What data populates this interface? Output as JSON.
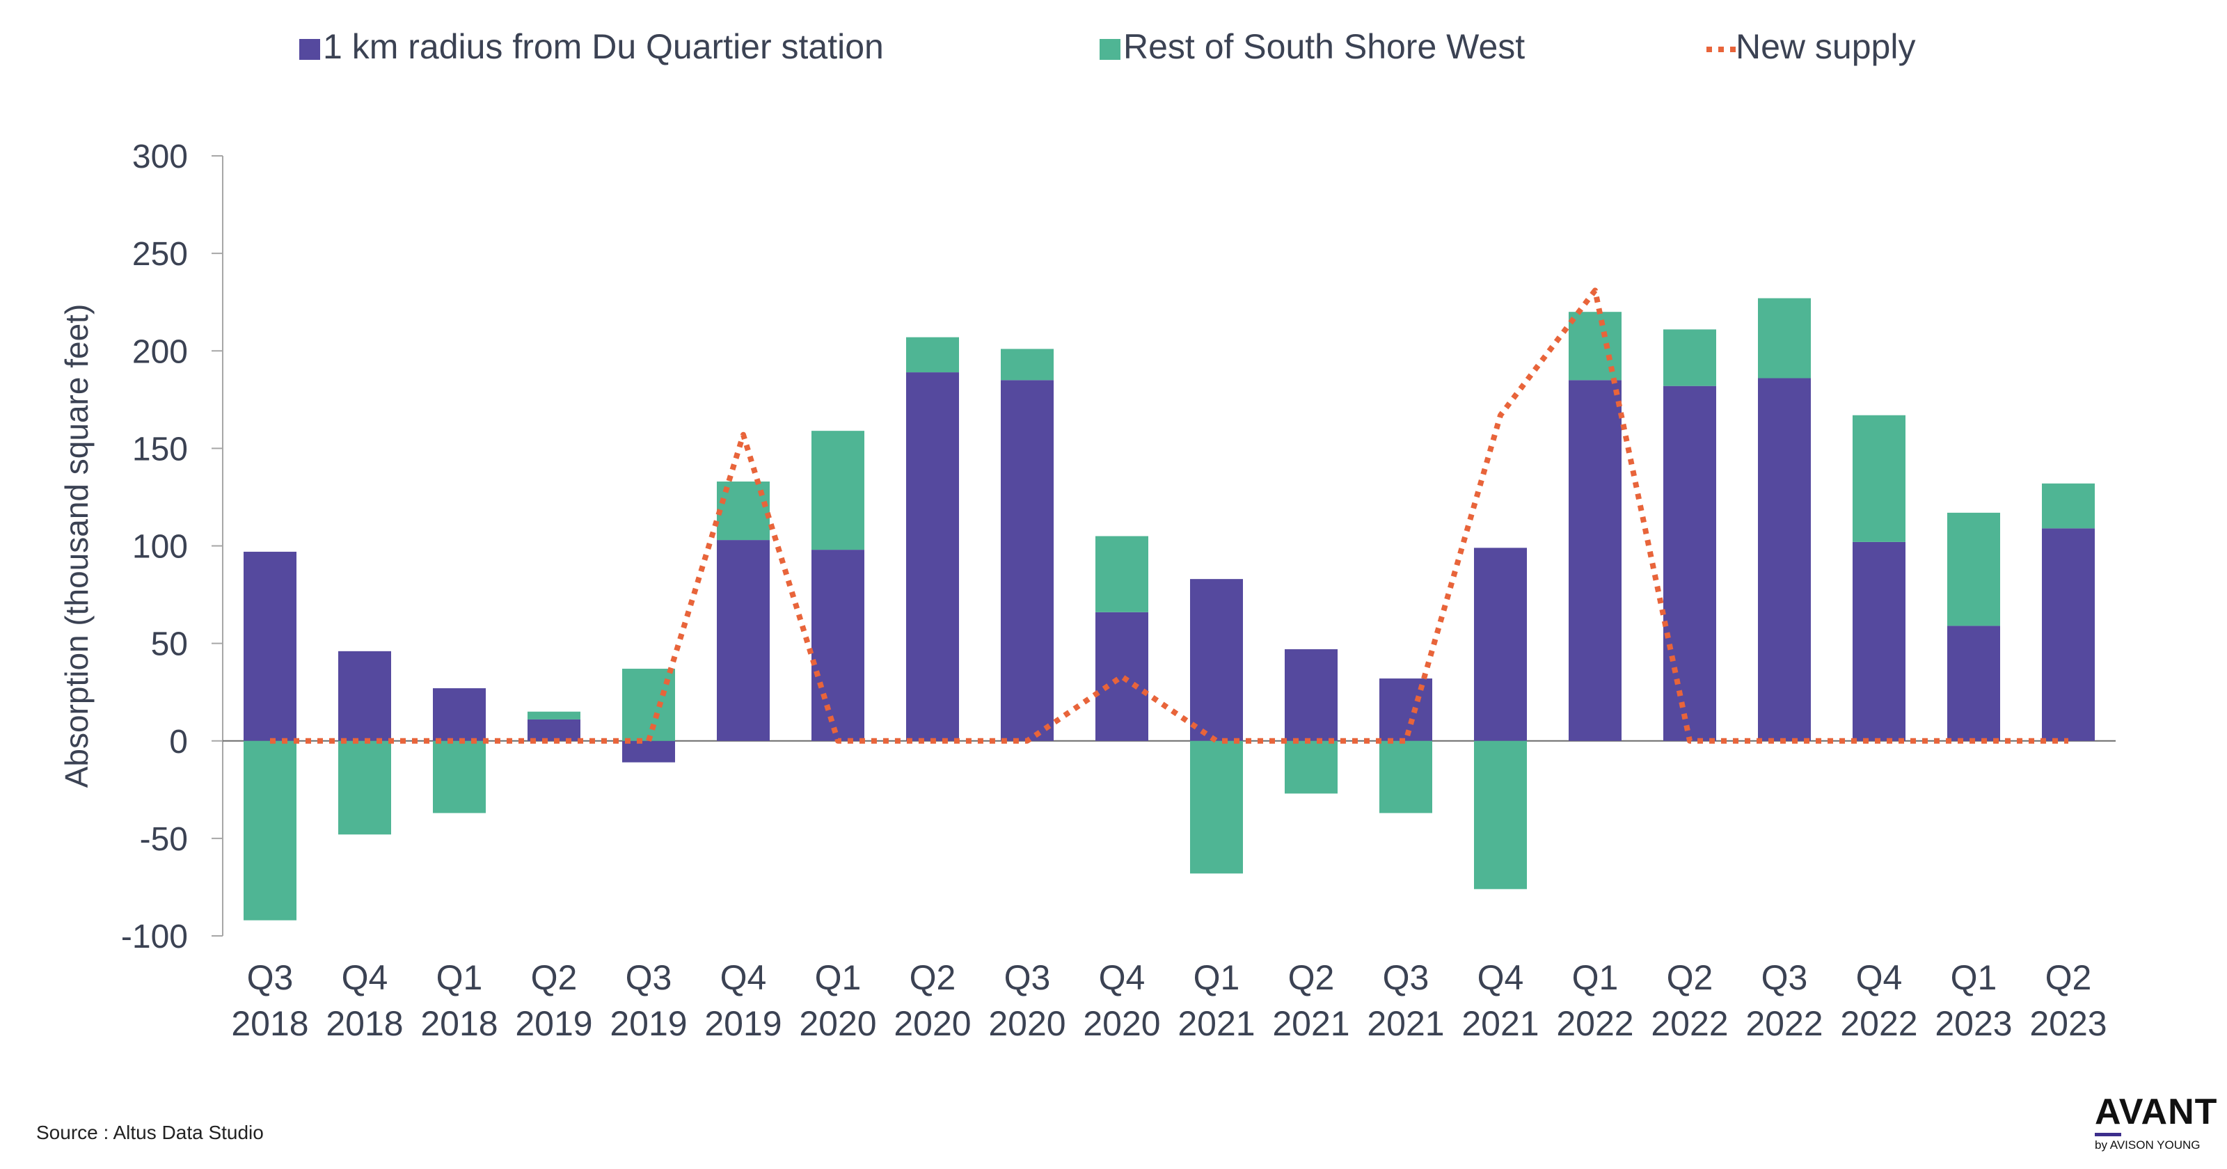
{
  "chart_data": {
    "type": "bar",
    "stacked": true,
    "ylabel": "Absorption (thousand square feet)",
    "ylim": [
      -100,
      300
    ],
    "yticks": [
      300,
      250,
      200,
      150,
      100,
      50,
      0,
      -50,
      -100
    ],
    "categories": [
      [
        "Q3",
        "2018"
      ],
      [
        "Q4",
        "2018"
      ],
      [
        "Q1",
        "2018"
      ],
      [
        "Q2",
        "2019"
      ],
      [
        "Q3",
        "2019"
      ],
      [
        "Q4",
        "2019"
      ],
      [
        "Q1",
        "2020"
      ],
      [
        "Q2",
        "2020"
      ],
      [
        "Q3",
        "2020"
      ],
      [
        "Q4",
        "2020"
      ],
      [
        "Q1",
        "2021"
      ],
      [
        "Q2",
        "2021"
      ],
      [
        "Q3",
        "2021"
      ],
      [
        "Q4",
        "2021"
      ],
      [
        "Q1",
        "2022"
      ],
      [
        "Q2",
        "2022"
      ],
      [
        "Q3",
        "2022"
      ],
      [
        "Q4",
        "2022"
      ],
      [
        "Q1",
        "2023"
      ],
      [
        "Q2",
        "2023"
      ]
    ],
    "series": [
      {
        "name": "1 km radius from Du Quartier station",
        "type": "bar",
        "color": "#55499e",
        "values": [
          97,
          46,
          27,
          11,
          -11,
          103,
          98,
          189,
          185,
          66,
          83,
          47,
          32,
          99,
          185,
          182,
          186,
          102,
          59,
          109
        ]
      },
      {
        "name": "Rest of South Shore West",
        "type": "bar",
        "color": "#4fb594",
        "values": [
          -92,
          -48,
          -37,
          4,
          37,
          30,
          61,
          18,
          16,
          39,
          -68,
          -27,
          -37,
          -76,
          35,
          29,
          41,
          65,
          58,
          23
        ]
      },
      {
        "name": "New supply",
        "type": "line",
        "style": "dotted",
        "color": "#e8643a",
        "values": [
          0,
          0,
          0,
          0,
          0,
          157,
          0,
          0,
          0,
          33,
          0,
          0,
          0,
          167,
          231,
          0,
          0,
          0,
          0,
          0
        ]
      }
    ]
  },
  "source_text": "Source : Altus Data Studio",
  "logo": {
    "main": "AVANT",
    "sub": "by AVISON YOUNG"
  }
}
